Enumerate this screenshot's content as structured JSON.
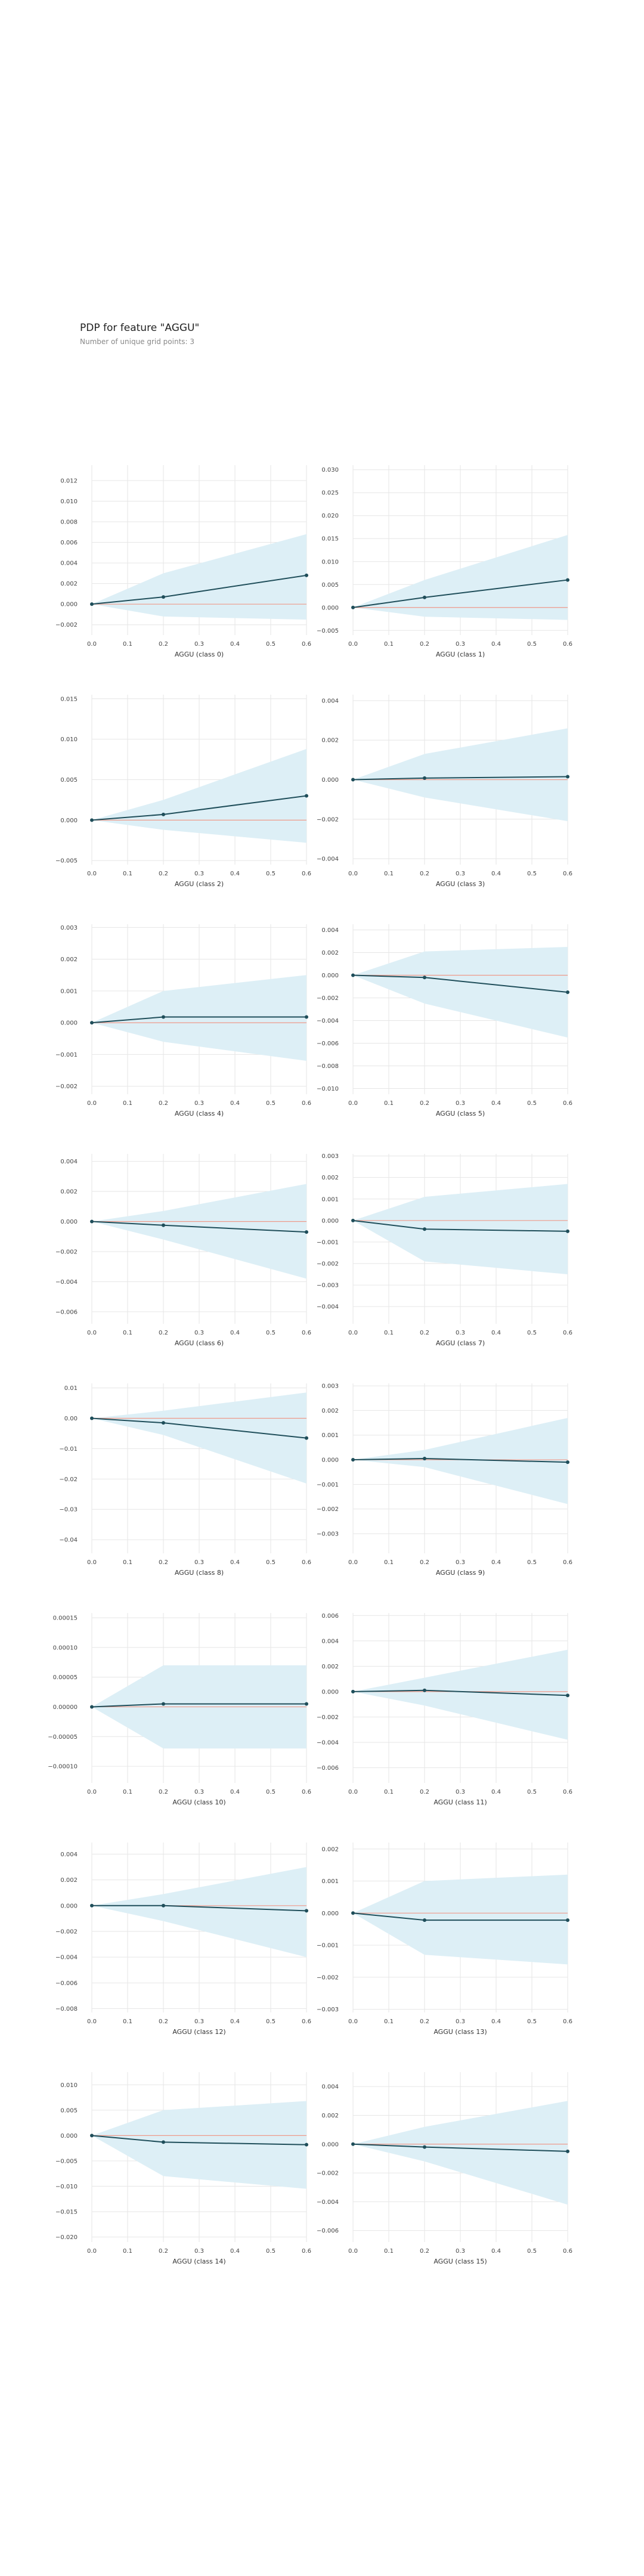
{
  "title": "PDP for feature \"AGGU\"",
  "subtitle": "Number of unique grid points: 3",
  "colors": {
    "band": "#ddeff6",
    "line": "#1f4e5a",
    "baseline": "#ee9a8a",
    "grid": "#e6e6e6",
    "tick": "#444444"
  },
  "chart_data": [
    {
      "type": "line",
      "xlabel": "AGGU (class 0)",
      "x": [
        0.0,
        0.2,
        0.6
      ],
      "xticks": [
        "0.0",
        "0.1",
        "0.2",
        "0.3",
        "0.4",
        "0.5",
        "0.6"
      ],
      "y": [
        0.0,
        0.0007,
        0.0028
      ],
      "lower": [
        0.0,
        -0.0012,
        -0.0015
      ],
      "upper": [
        0.0,
        0.003,
        0.0068
      ],
      "ylim": [
        -0.003,
        0.0135
      ],
      "yticks": [
        "−0.002",
        "0.000",
        "0.002",
        "0.004",
        "0.006",
        "0.008",
        "0.010",
        "0.012"
      ]
    },
    {
      "type": "line",
      "xlabel": "AGGU (class 1)",
      "x": [
        0.0,
        0.2,
        0.6
      ],
      "xticks": [
        "0.0",
        "0.1",
        "0.2",
        "0.3",
        "0.4",
        "0.5",
        "0.6"
      ],
      "y": [
        0.0,
        0.0022,
        0.006
      ],
      "lower": [
        0.0,
        -0.002,
        -0.0027
      ],
      "upper": [
        0.0,
        0.006,
        0.0158
      ],
      "ylim": [
        -0.006,
        0.031
      ],
      "yticks": [
        "−0.005",
        "0.000",
        "0.005",
        "0.010",
        "0.015",
        "0.020",
        "0.025",
        "0.030"
      ]
    },
    {
      "type": "line",
      "xlabel": "AGGU (class 2)",
      "x": [
        0.0,
        0.2,
        0.6
      ],
      "xticks": [
        "0.0",
        "0.1",
        "0.2",
        "0.3",
        "0.4",
        "0.5",
        "0.6"
      ],
      "y": [
        0.0,
        0.0007,
        0.003
      ],
      "lower": [
        0.0,
        -0.0012,
        -0.0028
      ],
      "upper": [
        0.0,
        0.0025,
        0.0088
      ],
      "ylim": [
        -0.0055,
        0.0155
      ],
      "yticks": [
        "−0.005",
        "0.000",
        "0.005",
        "0.010",
        "0.015"
      ]
    },
    {
      "type": "line",
      "xlabel": "AGGU (class 3)",
      "x": [
        0.0,
        0.2,
        0.6
      ],
      "xticks": [
        "0.0",
        "0.1",
        "0.2",
        "0.3",
        "0.4",
        "0.5",
        "0.6"
      ],
      "y": [
        0.0,
        8e-05,
        0.00015
      ],
      "lower": [
        0.0,
        -0.0009,
        -0.0021
      ],
      "upper": [
        0.0,
        0.0013,
        0.0026
      ],
      "ylim": [
        -0.0043,
        0.0043
      ],
      "yticks": [
        "−0.004",
        "−0.002",
        "0.000",
        "0.002",
        "0.004"
      ]
    },
    {
      "type": "line",
      "xlabel": "AGGU (class 4)",
      "x": [
        0.0,
        0.2,
        0.6
      ],
      "xticks": [
        "0.0",
        "0.1",
        "0.2",
        "0.3",
        "0.4",
        "0.5",
        "0.6"
      ],
      "y": [
        0.0,
        0.00018,
        0.00018
      ],
      "lower": [
        0.0,
        -0.0006,
        -0.0012
      ],
      "upper": [
        0.0,
        0.001,
        0.0015
      ],
      "ylim": [
        -0.00225,
        0.0031
      ],
      "yticks": [
        "−0.002",
        "−0.001",
        "0.000",
        "0.001",
        "0.002",
        "0.003"
      ]
    },
    {
      "type": "line",
      "xlabel": "AGGU (class 5)",
      "x": [
        0.0,
        0.2,
        0.6
      ],
      "xticks": [
        "0.0",
        "0.1",
        "0.2",
        "0.3",
        "0.4",
        "0.5",
        "0.6"
      ],
      "y": [
        0.0,
        -0.0002,
        -0.0015
      ],
      "lower": [
        0.0,
        -0.0025,
        -0.0055
      ],
      "upper": [
        0.0,
        0.0021,
        0.0025
      ],
      "ylim": [
        -0.0105,
        0.0045
      ],
      "yticks": [
        "−0.010",
        "−0.008",
        "−0.006",
        "−0.004",
        "−0.002",
        "0.000",
        "0.002",
        "0.004"
      ]
    },
    {
      "type": "line",
      "xlabel": "AGGU (class 6)",
      "x": [
        0.0,
        0.2,
        0.6
      ],
      "xticks": [
        "0.0",
        "0.1",
        "0.2",
        "0.3",
        "0.4",
        "0.5",
        "0.6"
      ],
      "y": [
        0.0,
        -0.00025,
        -0.0007
      ],
      "lower": [
        0.0,
        -0.0012,
        -0.0038
      ],
      "upper": [
        0.0,
        0.0007,
        0.0025
      ],
      "ylim": [
        -0.0068,
        0.0045
      ],
      "yticks": [
        "−0.006",
        "−0.004",
        "−0.002",
        "0.000",
        "0.002",
        "0.004"
      ]
    },
    {
      "type": "line",
      "xlabel": "AGGU (class 7)",
      "x": [
        0.0,
        0.2,
        0.6
      ],
      "xticks": [
        "0.0",
        "0.1",
        "0.2",
        "0.3",
        "0.4",
        "0.5",
        "0.6"
      ],
      "y": [
        0.0,
        -0.0004,
        -0.0005
      ],
      "lower": [
        0.0,
        -0.0019,
        -0.0025
      ],
      "upper": [
        0.0,
        0.0011,
        0.0017
      ],
      "ylim": [
        -0.0048,
        0.0031
      ],
      "yticks": [
        "−0.004",
        "−0.003",
        "−0.002",
        "−0.001",
        "0.000",
        "0.001",
        "0.002",
        "0.003"
      ]
    },
    {
      "type": "line",
      "xlabel": "AGGU (class 8)",
      "x": [
        0.0,
        0.2,
        0.6
      ],
      "xticks": [
        "0.0",
        "0.1",
        "0.2",
        "0.3",
        "0.4",
        "0.5",
        "0.6"
      ],
      "y": [
        0.0,
        -0.0015,
        -0.0065
      ],
      "lower": [
        0.0,
        -0.0055,
        -0.0215
      ],
      "upper": [
        0.0,
        0.0025,
        0.0085
      ],
      "ylim": [
        -0.0445,
        0.0115
      ],
      "yticks": [
        "−0.04",
        "−0.03",
        "−0.02",
        "−0.01",
        "0.00",
        "0.01"
      ]
    },
    {
      "type": "line",
      "xlabel": "AGGU (class 9)",
      "x": [
        0.0,
        0.2,
        0.6
      ],
      "xticks": [
        "0.0",
        "0.1",
        "0.2",
        "0.3",
        "0.4",
        "0.5",
        "0.6"
      ],
      "y": [
        0.0,
        5e-05,
        -0.0001
      ],
      "lower": [
        0.0,
        -0.0003,
        -0.0018
      ],
      "upper": [
        0.0,
        0.0004,
        0.0017
      ],
      "ylim": [
        -0.0038,
        0.0031
      ],
      "yticks": [
        "−0.003",
        "−0.002",
        "−0.001",
        "0.000",
        "0.001",
        "0.002",
        "0.003"
      ]
    },
    {
      "type": "line",
      "xlabel": "AGGU (class 10)",
      "x": [
        0.0,
        0.2,
        0.6
      ],
      "xticks": [
        "0.0",
        "0.1",
        "0.2",
        "0.3",
        "0.4",
        "0.5",
        "0.6"
      ],
      "y": [
        0.0,
        5e-06,
        5e-06
      ],
      "lower": [
        0.0,
        -7e-05,
        -7e-05
      ],
      "upper": [
        0.0,
        7e-05,
        7e-05
      ],
      "ylim": [
        -0.000128,
        0.000158
      ],
      "yticks": [
        "−0.00010",
        "−0.00005",
        "0.00000",
        "0.00005",
        "0.00010",
        "0.00015"
      ]
    },
    {
      "type": "line",
      "xlabel": "AGGU (class 11)",
      "x": [
        0.0,
        0.2,
        0.6
      ],
      "xticks": [
        "0.0",
        "0.1",
        "0.2",
        "0.3",
        "0.4",
        "0.5",
        "0.6"
      ],
      "y": [
        0.0,
        0.0001,
        -0.0003
      ],
      "lower": [
        0.0,
        -0.0011,
        -0.0038
      ],
      "upper": [
        0.0,
        0.0011,
        0.0033
      ],
      "ylim": [
        -0.0072,
        0.0062
      ],
      "yticks": [
        "−0.006",
        "−0.004",
        "−0.002",
        "0.000",
        "0.002",
        "0.004",
        "0.006"
      ]
    },
    {
      "type": "line",
      "xlabel": "AGGU (class 12)",
      "x": [
        0.0,
        0.2,
        0.6
      ],
      "xticks": [
        "0.0",
        "0.1",
        "0.2",
        "0.3",
        "0.4",
        "0.5",
        "0.6"
      ],
      "y": [
        0.0,
        0.0,
        -0.0004
      ],
      "lower": [
        0.0,
        -0.0012,
        -0.004
      ],
      "upper": [
        0.0,
        0.0009,
        0.003
      ],
      "ylim": [
        -0.0083,
        0.0049
      ],
      "yticks": [
        "−0.008",
        "−0.006",
        "−0.004",
        "−0.002",
        "0.000",
        "0.002",
        "0.004"
      ]
    },
    {
      "type": "line",
      "xlabel": "AGGU (class 13)",
      "x": [
        0.0,
        0.2,
        0.6
      ],
      "xticks": [
        "0.0",
        "0.1",
        "0.2",
        "0.3",
        "0.4",
        "0.5",
        "0.6"
      ],
      "y": [
        0.0,
        -0.00022,
        -0.00022
      ],
      "lower": [
        0.0,
        -0.0013,
        -0.0016
      ],
      "upper": [
        0.0,
        0.001,
        0.0012
      ],
      "ylim": [
        -0.0031,
        0.0022
      ],
      "yticks": [
        "−0.003",
        "−0.002",
        "−0.001",
        "0.000",
        "0.001",
        "0.002"
      ]
    },
    {
      "type": "line",
      "xlabel": "AGGU (class 14)",
      "x": [
        0.0,
        0.2,
        0.6
      ],
      "xticks": [
        "0.0",
        "0.1",
        "0.2",
        "0.3",
        "0.4",
        "0.5",
        "0.6"
      ],
      "y": [
        0.0,
        -0.0013,
        -0.0018
      ],
      "lower": [
        0.0,
        -0.008,
        -0.0105
      ],
      "upper": [
        0.0,
        0.005,
        0.0068
      ],
      "ylim": [
        -0.021,
        0.0125
      ],
      "yticks": [
        "−0.020",
        "−0.015",
        "−0.010",
        "−0.005",
        "0.000",
        "0.005",
        "0.010"
      ]
    },
    {
      "type": "line",
      "xlabel": "AGGU (class 15)",
      "x": [
        0.0,
        0.2,
        0.6
      ],
      "xticks": [
        "0.0",
        "0.1",
        "0.2",
        "0.3",
        "0.4",
        "0.5",
        "0.6"
      ],
      "y": [
        0.0,
        -0.0002,
        -0.0005
      ],
      "lower": [
        0.0,
        -0.0012,
        -0.0042
      ],
      "upper": [
        0.0,
        0.0012,
        0.003
      ],
      "ylim": [
        -0.0068,
        0.005
      ],
      "yticks": [
        "−0.006",
        "−0.004",
        "−0.002",
        "0.000",
        "0.002",
        "0.004"
      ]
    }
  ]
}
